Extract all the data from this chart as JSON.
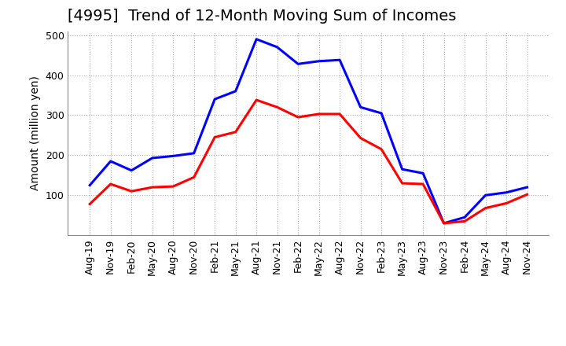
{
  "title": "[4995]  Trend of 12-Month Moving Sum of Incomes",
  "ylabel": "Amount (million yen)",
  "ylim": [
    0,
    510
  ],
  "yticks": [
    100,
    200,
    300,
    400,
    500
  ],
  "x_labels": [
    "Aug-19",
    "Nov-19",
    "Feb-20",
    "May-20",
    "Aug-20",
    "Nov-20",
    "Feb-21",
    "May-21",
    "Aug-21",
    "Nov-21",
    "Feb-22",
    "May-22",
    "Aug-22",
    "Nov-22",
    "Feb-23",
    "May-23",
    "Aug-23",
    "Nov-23",
    "Feb-24",
    "May-24",
    "Aug-24",
    "Nov-24"
  ],
  "ordinary_income": [
    125,
    185,
    162,
    193,
    198,
    205,
    340,
    360,
    490,
    470,
    428,
    435,
    438,
    320,
    305,
    165,
    155,
    30,
    45,
    100,
    107,
    120
  ],
  "net_income": [
    78,
    128,
    110,
    120,
    122,
    145,
    245,
    258,
    338,
    320,
    295,
    303,
    303,
    243,
    215,
    130,
    128,
    30,
    35,
    68,
    80,
    102
  ],
  "ordinary_color": "#0000ff",
  "net_color": "#ff0000",
  "background_color": "#ffffff",
  "grid_color": "#aaaaaa",
  "title_fontsize": 14,
  "label_fontsize": 10,
  "tick_fontsize": 9,
  "legend_fontsize": 11
}
